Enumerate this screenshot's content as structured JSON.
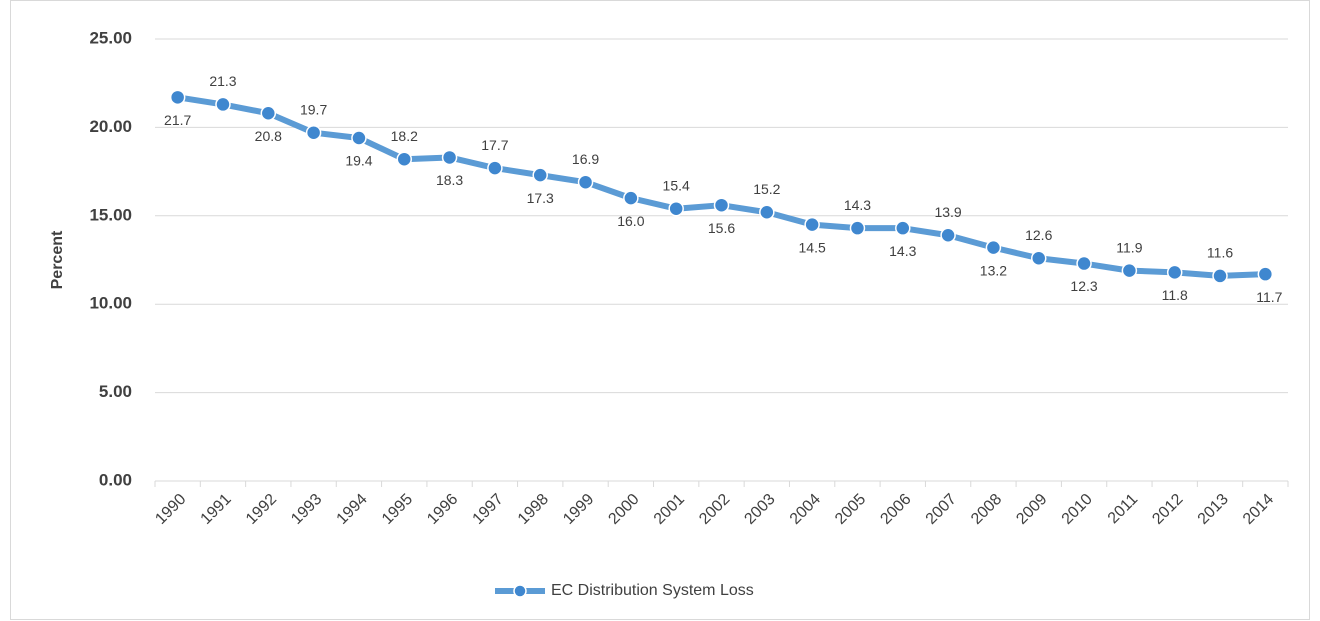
{
  "chart_data": {
    "type": "line",
    "y_label": "Percent",
    "categories": [
      "1990",
      "1991",
      "1992",
      "1993",
      "1994",
      "1995",
      "1996",
      "1997",
      "1998",
      "1999",
      "2000",
      "2001",
      "2002",
      "2003",
      "2004",
      "2005",
      "2006",
      "2007",
      "2008",
      "2009",
      "2010",
      "2011",
      "2012",
      "2013",
      "2014"
    ],
    "series": [
      {
        "name": "EC Distribution System Loss",
        "color": "#5b9bd5",
        "values": [
          21.7,
          21.3,
          20.8,
          19.7,
          19.4,
          18.2,
          18.3,
          17.7,
          17.3,
          16.9,
          16.0,
          15.4,
          15.6,
          15.2,
          14.5,
          14.3,
          14.3,
          13.9,
          13.2,
          12.6,
          12.3,
          11.9,
          11.8,
          11.6,
          11.7
        ],
        "value_labels": [
          "21.7",
          "21.3",
          "20.8",
          "19.7",
          "19.4",
          "18.2",
          "18.3",
          "17.7",
          "17.3",
          "16.9",
          "16.0",
          "15.4",
          "15.6",
          "15.2",
          "14.5",
          "14.3",
          "14.3",
          "13.9",
          "13.2",
          "12.6",
          "12.3",
          "11.9",
          "11.8",
          "11.6",
          "11.7"
        ]
      }
    ],
    "ylim": [
      0,
      25
    ],
    "yticks": [
      {
        "value": 0,
        "label": "0.00"
      },
      {
        "value": 5,
        "label": "5.00"
      },
      {
        "value": 10,
        "label": "10.00"
      },
      {
        "value": 15,
        "label": "15.00"
      },
      {
        "value": 20,
        "label": "20.00"
      },
      {
        "value": 25,
        "label": "25.00"
      }
    ],
    "grid": true,
    "legend": "bottom"
  }
}
